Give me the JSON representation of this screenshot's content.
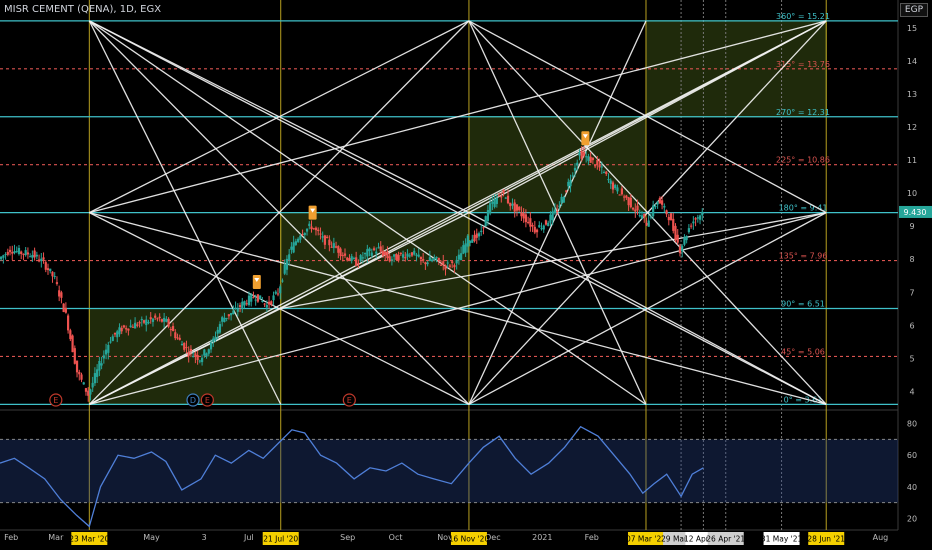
{
  "chart_data": {
    "type": "candlestick",
    "title": "MISR CEMENT (QENA), 1D, EGX",
    "currency": "EGP",
    "last_price": "9.430",
    "price_axis": {
      "ticks": [
        4,
        5,
        6,
        7,
        8,
        9,
        10,
        11,
        12,
        13,
        14,
        15
      ],
      "range": [
        3.5,
        15.6
      ]
    },
    "time_axis": {
      "range": [
        "2020-01-27",
        "2021-08-12"
      ],
      "labels": [
        {
          "date": "2020-02-03",
          "text": "Feb"
        },
        {
          "date": "2020-03-02",
          "text": "Mar"
        },
        {
          "date": "2020-05-01",
          "text": "May"
        },
        {
          "date": "2020-06-03",
          "text": "3"
        },
        {
          "date": "2020-07-01",
          "text": "Jul"
        },
        {
          "date": "2020-09-01",
          "text": "Sep"
        },
        {
          "date": "2020-10-01",
          "text": "Oct"
        },
        {
          "date": "2020-11-01",
          "text": "Nov"
        },
        {
          "date": "2020-12-01",
          "text": "Dec"
        },
        {
          "date": "2021-01-01",
          "text": "2021"
        },
        {
          "date": "2021-02-01",
          "text": "Feb"
        },
        {
          "date": "2021-08-01",
          "text": "Aug"
        }
      ],
      "date_markers": [
        {
          "date": "2020-03-23",
          "text": "23 Mar '20",
          "style": "yellow"
        },
        {
          "date": "2020-07-21",
          "text": "21 Jul '20",
          "style": "yellow"
        },
        {
          "date": "2020-11-16",
          "text": "16 Nov '20",
          "style": "yellow"
        },
        {
          "date": "2021-03-07",
          "text": "07 Mar '21",
          "style": "yellow"
        },
        {
          "date": "2021-03-29",
          "text": "29 Mar '21",
          "style": "grey"
        },
        {
          "date": "2021-04-12",
          "text": "12 Apr '21",
          "style": "white"
        },
        {
          "date": "2021-04-26",
          "text": "26 Apr '21",
          "style": "grey"
        },
        {
          "date": "2021-05-31",
          "text": "31 May '21",
          "style": "white"
        },
        {
          "date": "2021-06-28",
          "text": "28 Jun '21",
          "style": "yellow"
        }
      ]
    },
    "levels": [
      {
        "angle": "0°",
        "value": 3.61,
        "label": "0° = 3.61",
        "style": "solid"
      },
      {
        "angle": "45°",
        "value": 5.06,
        "label": "45° = 5.06",
        "style": "dashed"
      },
      {
        "angle": "90°",
        "value": 6.51,
        "label": "90° = 6.51",
        "style": "solid"
      },
      {
        "angle": "135°",
        "value": 7.96,
        "label": "135° = 7.96",
        "style": "dashed"
      },
      {
        "angle": "180°",
        "value": 9.41,
        "label": "180° = 9.41",
        "style": "solid"
      },
      {
        "angle": "225°",
        "value": 10.86,
        "label": "225° = 10.86",
        "style": "dashed"
      },
      {
        "angle": "270°",
        "value": 12.31,
        "label": "270° = 12.31",
        "style": "solid"
      },
      {
        "angle": "315°",
        "value": 13.76,
        "label": "315° = 13.76",
        "style": "dashed"
      },
      {
        "angle": "360°",
        "value": 15.21,
        "label": "360° = 15.21",
        "style": "solid"
      }
    ],
    "boxes": [
      {
        "from": "2020-03-23",
        "to": "2020-07-21",
        "low": 3.61,
        "high": 6.51
      },
      {
        "from": "2020-07-21",
        "to": "2020-11-16",
        "low": 6.51,
        "high": 9.41
      },
      {
        "from": "2020-11-16",
        "to": "2021-03-07",
        "low": 9.41,
        "high": 12.31
      },
      {
        "from": "2021-03-07",
        "to": "2021-06-28",
        "low": 12.31,
        "high": 15.21
      }
    ],
    "fan_lines": [
      [
        [
          "2020-03-23",
          15.21
        ],
        [
          "2020-11-16",
          3.61
        ]
      ],
      [
        [
          "2020-03-23",
          15.21
        ],
        [
          "2020-07-21",
          3.61
        ]
      ],
      [
        [
          "2020-03-23",
          15.21
        ],
        [
          "2021-03-07",
          3.61
        ]
      ],
      [
        [
          "2020-03-23",
          15.21
        ],
        [
          "2021-06-28",
          3.61
        ]
      ],
      [
        [
          "2020-03-23",
          3.61
        ],
        [
          "2020-11-16",
          15.21
        ]
      ],
      [
        [
          "2020-03-23",
          3.61
        ],
        [
          "2021-06-28",
          15.21
        ]
      ],
      [
        [
          "2020-03-23",
          3.61
        ],
        [
          "2021-06-28",
          9.41
        ]
      ],
      [
        [
          "2020-03-23",
          3.61
        ],
        [
          "2020-07-21",
          6.51
        ]
      ],
      [
        [
          "2020-03-23",
          3.61
        ],
        [
          "2020-11-16",
          9.41
        ]
      ],
      [
        [
          "2020-03-23",
          9.41
        ],
        [
          "2020-11-16",
          15.21
        ]
      ],
      [
        [
          "2020-03-23",
          9.41
        ],
        [
          "2020-11-16",
          3.61
        ]
      ],
      [
        [
          "2020-03-23",
          9.41
        ],
        [
          "2021-06-28",
          15.21
        ]
      ],
      [
        [
          "2020-03-23",
          9.41
        ],
        [
          "2021-06-28",
          3.61
        ]
      ],
      [
        [
          "2020-11-16",
          15.21
        ],
        [
          "2021-06-28",
          3.61
        ]
      ],
      [
        [
          "2020-11-16",
          15.21
        ],
        [
          "2021-03-07",
          3.61
        ]
      ],
      [
        [
          "2020-11-16",
          3.61
        ],
        [
          "2021-06-28",
          15.21
        ]
      ],
      [
        [
          "2020-11-16",
          3.61
        ],
        [
          "2021-03-07",
          15.21
        ]
      ],
      [
        [
          "2020-11-16",
          9.41
        ],
        [
          "2021-06-28",
          15.21
        ]
      ],
      [
        [
          "2020-11-16",
          9.41
        ],
        [
          "2021-06-28",
          3.61
        ]
      ],
      [
        [
          "2020-11-16",
          15.21
        ],
        [
          "2021-06-28",
          9.41
        ]
      ],
      [
        [
          "2020-11-16",
          3.61
        ],
        [
          "2021-06-28",
          9.41
        ]
      ],
      [
        [
          "2020-03-23",
          15.21
        ],
        [
          "2020-11-16",
          9.41
        ]
      ],
      [
        [
          "2020-07-21",
          6.51
        ],
        [
          "2021-06-28",
          9.41
        ]
      ],
      [
        [
          "2020-07-21",
          6.51
        ],
        [
          "2021-06-28",
          15.21
        ]
      ]
    ],
    "price_series": [
      [
        "2020-01-27",
        8.0
      ],
      [
        "2020-02-03",
        8.3
      ],
      [
        "2020-02-10",
        8.2
      ],
      [
        "2020-02-17",
        8.15
      ],
      [
        "2020-02-24",
        7.9
      ],
      [
        "2020-03-02",
        7.4
      ],
      [
        "2020-03-09",
        6.3
      ],
      [
        "2020-03-16",
        4.6
      ],
      [
        "2020-03-23",
        3.9
      ],
      [
        "2020-03-30",
        4.8
      ],
      [
        "2020-04-06",
        5.6
      ],
      [
        "2020-04-13",
        5.9
      ],
      [
        "2020-04-20",
        6.0
      ],
      [
        "2020-04-27",
        6.1
      ],
      [
        "2020-05-04",
        6.2
      ],
      [
        "2020-05-11",
        6.1
      ],
      [
        "2020-05-18",
        5.6
      ],
      [
        "2020-05-25",
        5.2
      ],
      [
        "2020-06-01",
        5.0
      ],
      [
        "2020-06-08",
        5.4
      ],
      [
        "2020-06-15",
        6.2
      ],
      [
        "2020-06-22",
        6.4
      ],
      [
        "2020-06-29",
        6.7
      ],
      [
        "2020-07-06",
        6.9
      ],
      [
        "2020-07-13",
        6.6
      ],
      [
        "2020-07-20",
        7.0
      ],
      [
        "2020-07-27",
        8.2
      ],
      [
        "2020-08-03",
        8.8
      ],
      [
        "2020-08-10",
        9.0
      ],
      [
        "2020-08-17",
        8.6
      ],
      [
        "2020-08-24",
        8.4
      ],
      [
        "2020-08-31",
        8.1
      ],
      [
        "2020-09-07",
        7.9
      ],
      [
        "2020-09-14",
        8.2
      ],
      [
        "2020-09-21",
        8.3
      ],
      [
        "2020-09-28",
        8.0
      ],
      [
        "2020-10-05",
        8.1
      ],
      [
        "2020-10-12",
        8.2
      ],
      [
        "2020-10-19",
        7.9
      ],
      [
        "2020-10-26",
        8.0
      ],
      [
        "2020-11-02",
        7.8
      ],
      [
        "2020-11-09",
        7.9
      ],
      [
        "2020-11-16",
        8.6
      ],
      [
        "2020-11-23",
        8.7
      ],
      [
        "2020-11-30",
        9.6
      ],
      [
        "2020-12-07",
        10.0
      ],
      [
        "2020-12-14",
        9.6
      ],
      [
        "2020-12-21",
        9.3
      ],
      [
        "2020-12-28",
        8.9
      ],
      [
        "2021-01-04",
        9.1
      ],
      [
        "2021-01-11",
        9.5
      ],
      [
        "2021-01-18",
        10.3
      ],
      [
        "2021-01-25",
        11.2
      ],
      [
        "2021-02-01",
        11.0
      ],
      [
        "2021-02-08",
        10.7
      ],
      [
        "2021-02-15",
        10.2
      ],
      [
        "2021-02-22",
        9.9
      ],
      [
        "2021-03-01",
        9.5
      ],
      [
        "2021-03-08",
        9.1
      ],
      [
        "2021-03-15",
        9.8
      ],
      [
        "2021-03-22",
        9.3
      ],
      [
        "2021-03-29",
        8.3
      ],
      [
        "2021-04-05",
        9.1
      ],
      [
        "2021-04-12",
        9.43
      ]
    ],
    "signals": [
      {
        "date": "2020-07-06",
        "value": 7.1,
        "kind": "sell-flag"
      },
      {
        "date": "2020-08-10",
        "value": 9.2,
        "kind": "sell-flag"
      },
      {
        "date": "2021-01-28",
        "value": 11.45,
        "kind": "sell-flag"
      }
    ],
    "events": [
      {
        "date": "2020-03-02",
        "text": "E"
      },
      {
        "date": "2020-05-27",
        "text": "D"
      },
      {
        "date": "2020-06-05",
        "text": "E"
      },
      {
        "date": "2020-09-02",
        "text": "E"
      }
    ],
    "oscillator": {
      "ticks": [
        20,
        40,
        60,
        80
      ],
      "range": [
        14,
        86
      ],
      "band": [
        30,
        70
      ],
      "series": [
        [
          "2020-01-27",
          55
        ],
        [
          "2020-02-05",
          58
        ],
        [
          "2020-02-14",
          52
        ],
        [
          "2020-02-24",
          45
        ],
        [
          "2020-03-05",
          32
        ],
        [
          "2020-03-15",
          22
        ],
        [
          "2020-03-23",
          15
        ],
        [
          "2020-03-30",
          40
        ],
        [
          "2020-04-10",
          60
        ],
        [
          "2020-04-20",
          58
        ],
        [
          "2020-05-01",
          62
        ],
        [
          "2020-05-10",
          56
        ],
        [
          "2020-05-20",
          38
        ],
        [
          "2020-06-01",
          45
        ],
        [
          "2020-06-10",
          60
        ],
        [
          "2020-06-20",
          55
        ],
        [
          "2020-07-01",
          63
        ],
        [
          "2020-07-10",
          58
        ],
        [
          "2020-07-20",
          68
        ],
        [
          "2020-07-28",
          76
        ],
        [
          "2020-08-05",
          74
        ],
        [
          "2020-08-15",
          60
        ],
        [
          "2020-08-25",
          55
        ],
        [
          "2020-09-05",
          45
        ],
        [
          "2020-09-15",
          52
        ],
        [
          "2020-09-25",
          50
        ],
        [
          "2020-10-05",
          55
        ],
        [
          "2020-10-15",
          48
        ],
        [
          "2020-10-25",
          45
        ],
        [
          "2020-11-05",
          42
        ],
        [
          "2020-11-16",
          55
        ],
        [
          "2020-11-25",
          65
        ],
        [
          "2020-12-05",
          72
        ],
        [
          "2020-12-15",
          58
        ],
        [
          "2020-12-25",
          48
        ],
        [
          "2021-01-05",
          55
        ],
        [
          "2021-01-15",
          65
        ],
        [
          "2021-01-25",
          78
        ],
        [
          "2021-02-05",
          72
        ],
        [
          "2021-02-15",
          60
        ],
        [
          "2021-02-25",
          48
        ],
        [
          "2021-03-05",
          36
        ],
        [
          "2021-03-12",
          42
        ],
        [
          "2021-03-20",
          48
        ],
        [
          "2021-03-29",
          34
        ],
        [
          "2021-04-05",
          48
        ],
        [
          "2021-04-12",
          52
        ]
      ]
    }
  }
}
